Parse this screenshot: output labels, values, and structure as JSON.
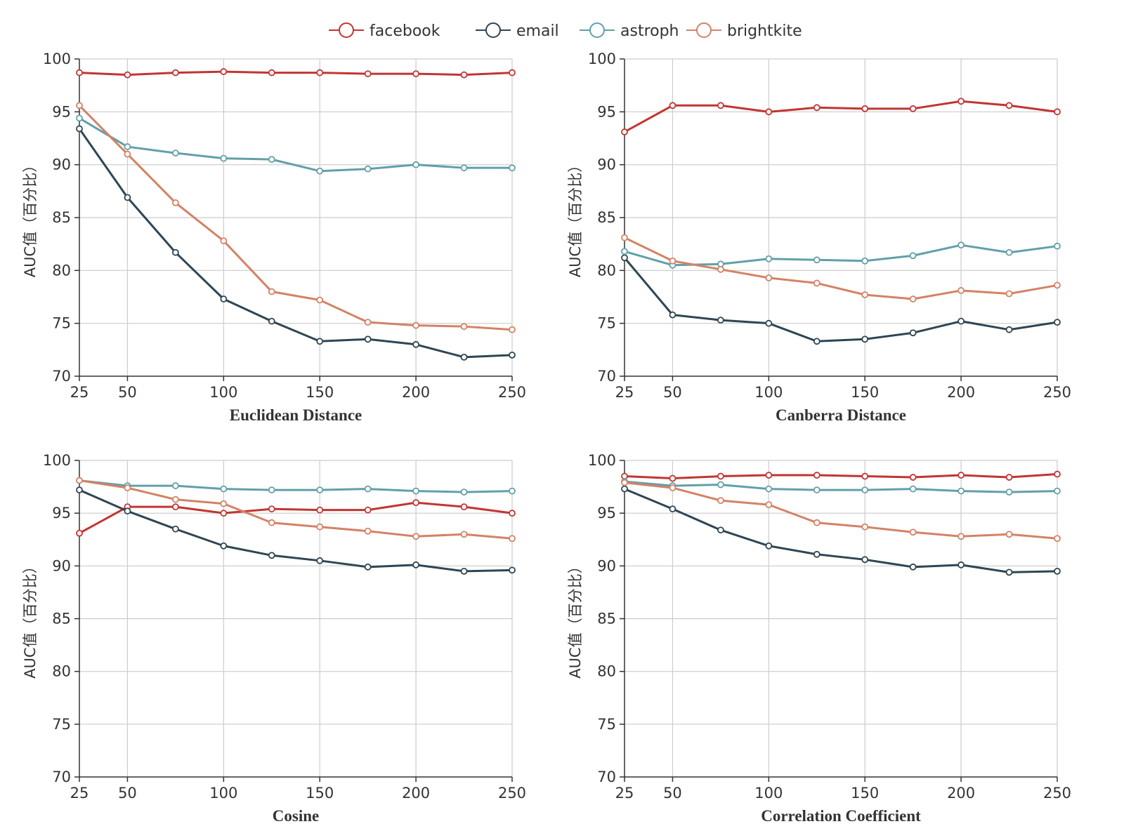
{
  "legend": {
    "position": "top-center",
    "entries": [
      {
        "name": "facebook",
        "color": "#c23531"
      },
      {
        "name": "email",
        "color": "#2f4554"
      },
      {
        "name": "astroph",
        "color": "#61a0a8"
      },
      {
        "name": "brightkite",
        "color": "#d48265"
      }
    ]
  },
  "chart_data": [
    {
      "type": "line",
      "xlabel": "Euclidean Distance",
      "ylabel": "AUC值（百分比）",
      "x": [
        25,
        50,
        75,
        100,
        125,
        150,
        175,
        200,
        225,
        250
      ],
      "xticks": [
        25,
        50,
        100,
        150,
        200,
        250
      ],
      "ylim": [
        70,
        100
      ],
      "yticks": [
        70,
        75,
        80,
        85,
        90,
        95,
        100
      ],
      "grid": true,
      "series": [
        {
          "name": "facebook",
          "color": "#c23531",
          "values": [
            98.7,
            98.5,
            98.7,
            98.8,
            98.7,
            98.7,
            98.6,
            98.6,
            98.5,
            98.7
          ]
        },
        {
          "name": "email",
          "color": "#2f4554",
          "values": [
            93.4,
            86.9,
            81.7,
            77.3,
            75.2,
            73.3,
            73.5,
            73.0,
            71.8,
            72.0
          ]
        },
        {
          "name": "astroph",
          "color": "#61a0a8",
          "values": [
            94.4,
            91.7,
            91.1,
            90.6,
            90.5,
            89.4,
            89.6,
            90.0,
            89.7,
            89.7
          ]
        },
        {
          "name": "brightkite",
          "color": "#d48265",
          "values": [
            95.6,
            91.0,
            86.4,
            82.8,
            78.0,
            77.2,
            75.1,
            74.8,
            74.7,
            74.4
          ]
        }
      ]
    },
    {
      "type": "line",
      "xlabel": "Canberra Distance",
      "ylabel": "AUC值（百分比）",
      "x": [
        25,
        50,
        75,
        100,
        125,
        150,
        175,
        200,
        225,
        250
      ],
      "xticks": [
        25,
        50,
        100,
        150,
        200,
        250
      ],
      "ylim": [
        70,
        100
      ],
      "yticks": [
        70,
        75,
        80,
        85,
        90,
        95,
        100
      ],
      "grid": true,
      "series": [
        {
          "name": "facebook",
          "color": "#c23531",
          "values": [
            93.1,
            95.6,
            95.6,
            95.0,
            95.4,
            95.3,
            95.3,
            96.0,
            95.6,
            95.0
          ]
        },
        {
          "name": "email",
          "color": "#2f4554",
          "values": [
            81.2,
            75.8,
            75.3,
            75.0,
            73.3,
            73.5,
            74.1,
            75.2,
            74.4,
            75.1
          ]
        },
        {
          "name": "astroph",
          "color": "#61a0a8",
          "values": [
            81.8,
            80.5,
            80.6,
            81.1,
            81.0,
            80.9,
            81.4,
            82.4,
            81.7,
            82.3
          ]
        },
        {
          "name": "brightkite",
          "color": "#d48265",
          "values": [
            83.1,
            80.9,
            80.1,
            79.3,
            78.8,
            77.7,
            77.3,
            78.1,
            77.8,
            78.6
          ]
        }
      ]
    },
    {
      "type": "line",
      "xlabel": "Cosine",
      "ylabel": "AUC值（百分比）",
      "x": [
        25,
        50,
        75,
        100,
        125,
        150,
        175,
        200,
        225,
        250
      ],
      "xticks": [
        25,
        50,
        100,
        150,
        200,
        250
      ],
      "ylim": [
        70,
        100
      ],
      "yticks": [
        70,
        75,
        80,
        85,
        90,
        95,
        100
      ],
      "grid": true,
      "series": [
        {
          "name": "facebook",
          "color": "#c23531",
          "values": [
            93.1,
            95.6,
            95.6,
            95.0,
            95.4,
            95.3,
            95.3,
            96.0,
            95.6,
            95.0
          ]
        },
        {
          "name": "email",
          "color": "#2f4554",
          "values": [
            97.2,
            95.2,
            93.5,
            91.9,
            91.0,
            90.5,
            89.9,
            90.1,
            89.5,
            89.6
          ]
        },
        {
          "name": "astroph",
          "color": "#61a0a8",
          "values": [
            98.1,
            97.6,
            97.6,
            97.3,
            97.2,
            97.2,
            97.3,
            97.1,
            97.0,
            97.1
          ]
        },
        {
          "name": "brightkite",
          "color": "#d48265",
          "values": [
            98.1,
            97.4,
            96.3,
            95.9,
            94.1,
            93.7,
            93.3,
            92.8,
            93.0,
            92.6
          ]
        }
      ]
    },
    {
      "type": "line",
      "xlabel": "Correlation Coefficient",
      "ylabel": "AUC值（百分比）",
      "x": [
        25,
        50,
        75,
        100,
        125,
        150,
        175,
        200,
        225,
        250
      ],
      "xticks": [
        25,
        50,
        100,
        150,
        200,
        250
      ],
      "ylim": [
        70,
        100
      ],
      "yticks": [
        70,
        75,
        80,
        85,
        90,
        95,
        100
      ],
      "grid": true,
      "series": [
        {
          "name": "facebook",
          "color": "#c23531",
          "values": [
            98.5,
            98.3,
            98.5,
            98.6,
            98.6,
            98.5,
            98.4,
            98.6,
            98.4,
            98.7
          ]
        },
        {
          "name": "email",
          "color": "#2f4554",
          "values": [
            97.3,
            95.4,
            93.4,
            91.9,
            91.1,
            90.6,
            89.9,
            90.1,
            89.4,
            89.5
          ]
        },
        {
          "name": "astroph",
          "color": "#61a0a8",
          "values": [
            98.0,
            97.6,
            97.7,
            97.3,
            97.2,
            97.2,
            97.3,
            97.1,
            97.0,
            97.1
          ]
        },
        {
          "name": "brightkite",
          "color": "#d48265",
          "values": [
            97.9,
            97.4,
            96.2,
            95.8,
            94.1,
            93.7,
            93.2,
            92.8,
            93.0,
            92.6
          ]
        }
      ]
    }
  ]
}
